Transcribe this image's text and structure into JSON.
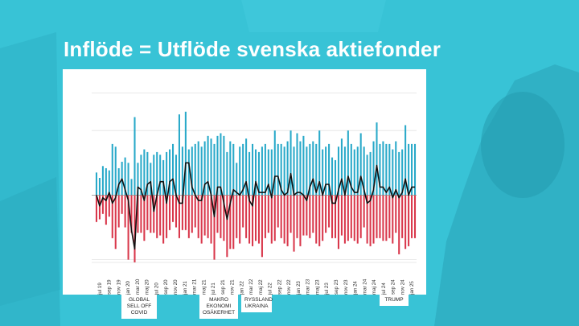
{
  "slide": {
    "title": "Inflöde = Utflöde svenska aktiefonder"
  },
  "colors": {
    "inflow": "#29a9c9",
    "outflow": "#d9374b",
    "net": "#111111",
    "grid": "#e2e2e2",
    "background": "#38c3d6"
  },
  "chart_data": {
    "type": "bar",
    "title": "",
    "xlabel": "",
    "ylabel": "",
    "ylim": [
      -14,
      21
    ],
    "grid": true,
    "legend": "none",
    "tick_labels": [
      "jul 19",
      "sep 19",
      "nov 19",
      "jan 20",
      "mar 20",
      "maj 20",
      "jul 20",
      "sep 20",
      "nov 20",
      "jan 21",
      "mar 21",
      "maj 21",
      "jul 21",
      "sep 21",
      "nov 21",
      "jan 22",
      "mar 22",
      "maj 22",
      "jul 22",
      "sep 22",
      "nov 22",
      "jan 23",
      "mar 23",
      "maj 23",
      "jul 23",
      "sep 23",
      "nov 23",
      "jan 24",
      "mar 24",
      "maj 24",
      "jul 24",
      "sep 24",
      "nov 24",
      "jan 25"
    ],
    "series": [
      {
        "values": [
          4.2,
          3.2,
          5.4,
          5.0,
          4.6,
          9.5,
          9.0,
          5.0,
          6.2,
          7.0,
          6.0,
          3.0,
          14.5,
          6.0,
          7.5,
          8.5,
          8.0,
          6.0,
          7.5,
          8.0,
          7.5,
          6.5,
          8.0,
          8.5,
          9.5,
          7.5,
          15.0,
          9.0,
          15.5,
          8.5,
          9.0,
          9.5,
          10.0,
          9.0,
          10.0,
          11.0,
          10.5,
          9.5,
          11.0,
          11.5,
          11.0,
          8.0,
          10.0,
          9.5,
          6.0,
          9.0,
          9.5,
          10.5,
          8.0,
          9.5,
          8.5,
          8.0,
          9.0,
          9.5,
          8.5,
          8.5,
          12.0,
          9.5,
          9.5,
          9.0,
          10.0,
          12.0,
          9.0,
          11.5,
          10.0,
          11.0,
          9.0,
          9.5,
          10.0,
          9.5,
          12.0,
          8.5,
          9.0,
          9.5,
          7.0,
          6.5,
          9.0,
          10.5,
          9.0,
          12.0,
          9.5,
          8.5,
          9.0,
          11.5,
          9.0,
          7.5,
          8.0,
          10.0,
          13.5,
          9.5,
          10.0,
          9.5,
          9.5,
          8.5,
          10.0,
          8.0,
          8.5,
          13.0,
          9.5,
          9.5,
          9.5
        ]
      },
      {
        "values": [
          -5.0,
          -4.5,
          -3.5,
          -5.5,
          -4.0,
          -8.0,
          -10.0,
          -6.0,
          -3.5,
          -6.0,
          -12.0,
          -7.0,
          -12.5,
          -7.0,
          -7.0,
          -8.5,
          -6.5,
          -7.0,
          -7.0,
          -8.0,
          -7.5,
          -9.0,
          -8.0,
          -6.5,
          -5.0,
          -6.0,
          -8.0,
          -6.5,
          -6.5,
          -8.0,
          -7.0,
          -6.0,
          -8.0,
          -9.0,
          -7.5,
          -8.0,
          -9.0,
          -12.0,
          -7.0,
          -8.0,
          -8.5,
          -11.5,
          -10.0,
          -10.0,
          -8.0,
          -9.0,
          -6.0,
          -8.0,
          -9.0,
          -9.5,
          -8.5,
          -9.0,
          -11.5,
          -8.0,
          -7.0,
          -9.0,
          -8.5,
          -6.0,
          -8.0,
          -9.0,
          -9.5,
          -7.0,
          -10.5,
          -8.0,
          -9.5,
          -7.5,
          -7.5,
          -8.0,
          -7.0,
          -9.0,
          -9.5,
          -8.5,
          -7.0,
          -6.0,
          -8.0,
          -8.0,
          -10.0,
          -7.5,
          -9.0,
          -8.5,
          -8.0,
          -8.5,
          -9.0,
          -8.0,
          -6.0,
          -9.0,
          -9.5,
          -9.0,
          -8.0,
          -8.0,
          -8.5,
          -8.5,
          -8.0,
          -9.0,
          -7.0,
          -11.0,
          -8.0,
          -10.0,
          -9.5,
          -8.0,
          -8.0
        ]
      },
      {
        "values": [
          0.0,
          -2.0,
          -0.5,
          -1.0,
          0.5,
          -1.5,
          -0.5,
          2.0,
          3.0,
          1.0,
          -1.0,
          -6.5,
          -10.0,
          1.5,
          1.0,
          -1.0,
          2.0,
          2.5,
          -3.0,
          0.0,
          2.5,
          2.5,
          -1.5,
          2.5,
          3.0,
          0.0,
          -1.5,
          -1.5,
          6.0,
          6.0,
          1.5,
          0.0,
          -1.0,
          -1.0,
          2.0,
          2.5,
          0.0,
          -4.0,
          1.5,
          1.5,
          -1.5,
          -4.5,
          -1.5,
          1.0,
          0.5,
          0.0,
          1.0,
          2.5,
          -1.0,
          -2.0,
          2.5,
          0.5,
          0.5,
          0.5,
          2.0,
          -0.5,
          3.5,
          3.5,
          1.0,
          0.0,
          0.5,
          4.0,
          0.0,
          0.5,
          0.5,
          0.0,
          -1.0,
          1.5,
          3.0,
          0.5,
          2.5,
          0.0,
          2.0,
          2.0,
          -1.5,
          -1.5,
          1.0,
          3.0,
          0.0,
          3.5,
          1.5,
          0.5,
          0.5,
          3.5,
          1.0,
          -1.5,
          -1.0,
          1.0,
          5.5,
          1.5,
          1.5,
          0.5,
          1.5,
          -0.5,
          1.0,
          -0.5,
          0.5,
          3.0,
          0.0,
          1.5,
          1.5
        ]
      }
    ],
    "annotations": [
      {
        "id": "covid",
        "lines": [
          "GLOBAL",
          "SELL OFF",
          "COVID"
        ]
      },
      {
        "id": "makro",
        "lines": [
          "MAKRO",
          "EKONOMI",
          "OSÄKERHET"
        ]
      },
      {
        "id": "ryss",
        "lines": [
          "RYSSLAND",
          "UKRAINA"
        ]
      },
      {
        "id": "trump",
        "lines": [
          "TRUMP"
        ]
      }
    ]
  }
}
